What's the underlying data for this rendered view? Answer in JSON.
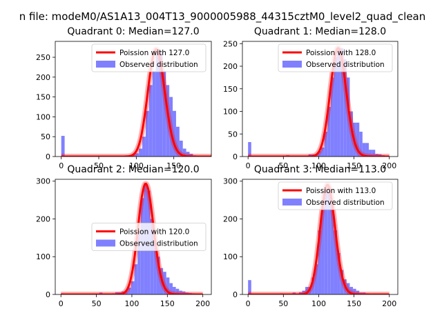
{
  "suptitle": "n file: modeM0/AS1A13_004T13_9000005988_44315cztM0_level2_quad_clean",
  "colors": {
    "bars": "#8080ff",
    "curve": "#ff0000",
    "curve_halo": "#ff0000"
  },
  "chart_data": [
    {
      "type": "bar+line",
      "title": "Quadrant 0: Median=127.0",
      "xlim": [
        -8,
        200
      ],
      "ylim": [
        0,
        290
      ],
      "xticks": [
        0,
        50,
        100,
        150
      ],
      "yticks": [
        0,
        50,
        100,
        150,
        200,
        250
      ],
      "legend": {
        "placement": "top-right",
        "entries": [
          "Poission with 127.0",
          "Observed distribution"
        ]
      },
      "bin_width": 4.5,
      "bars": {
        "x": [
          0,
          90,
          94.5,
          99,
          103.5,
          108,
          112.5,
          117,
          121.5,
          126,
          130.5,
          135,
          139.5,
          144,
          148.5,
          153,
          157.5,
          162,
          166.5,
          171,
          175.5,
          180
        ],
        "values": [
          52,
          2,
          5,
          8,
          20,
          50,
          115,
          180,
          215,
          270,
          265,
          215,
          180,
          150,
          115,
          75,
          40,
          20,
          12,
          7,
          3,
          2
        ]
      },
      "poisson_mean": 127.0,
      "poisson_scale": 270
    },
    {
      "type": "bar+line",
      "title": "Quadrant 1: Median=128.0",
      "xlim": [
        -8,
        212
      ],
      "ylim": [
        0,
        255
      ],
      "xticks": [
        0,
        50,
        100,
        150,
        200
      ],
      "yticks": [
        0,
        50,
        100,
        150,
        200,
        250
      ],
      "legend": {
        "placement": "top-right",
        "entries": [
          "Poission with 128.0",
          "Observed distribution"
        ]
      },
      "bin_width": 4.5,
      "bars": {
        "x": [
          0,
          54,
          81,
          85.5,
          90,
          94.5,
          99,
          103.5,
          108,
          112.5,
          117,
          121.5,
          126,
          130.5,
          135,
          139.5,
          144,
          148.5,
          153,
          157.5,
          162,
          166.5,
          171,
          175.5,
          180,
          184.5,
          189
        ],
        "values": [
          32,
          3,
          2,
          5,
          5,
          5,
          12,
          20,
          55,
          110,
          175,
          220,
          240,
          240,
          215,
          175,
          100,
          75,
          75,
          55,
          30,
          30,
          15,
          15,
          6,
          5,
          3
        ]
      },
      "poisson_mean": 128.0,
      "poisson_scale": 240
    },
    {
      "type": "bar+line",
      "title": "Quadrant 2: Median=120.0",
      "xlim": [
        -8,
        212
      ],
      "ylim": [
        0,
        305
      ],
      "xticks": [
        0,
        50,
        100,
        150,
        200
      ],
      "yticks": [
        0,
        100,
        200,
        300
      ],
      "legend": {
        "placement": "center-right",
        "entries": [
          "Poission with 120.0",
          "Observed distribution"
        ]
      },
      "bin_width": 4.5,
      "bars": {
        "x": [
          0,
          54,
          72,
          76.5,
          81,
          85.5,
          90,
          94.5,
          99,
          103.5,
          108,
          112.5,
          117,
          121.5,
          126,
          130.5,
          135,
          139.5,
          144,
          148.5,
          153,
          157.5,
          162,
          166.5,
          171,
          175.5,
          180,
          184.5
        ],
        "values": [
          3,
          5,
          3,
          6,
          6,
          8,
          10,
          18,
          35,
          80,
          160,
          255,
          295,
          275,
          200,
          140,
          100,
          70,
          60,
          45,
          30,
          20,
          15,
          10,
          8,
          5,
          4,
          3
        ]
      },
      "poisson_mean": 120.0,
      "poisson_scale": 293
    },
    {
      "type": "bar+line",
      "title": "Quadrant 3: Median=113.0",
      "xlim": [
        -8,
        212
      ],
      "ylim": [
        0,
        305
      ],
      "xticks": [
        0,
        50,
        100,
        150,
        200
      ],
      "yticks": [
        0,
        100,
        200,
        300
      ],
      "legend": {
        "placement": "top-right",
        "entries": [
          "Poission with 113.0",
          "Observed distribution"
        ]
      },
      "bin_width": 4.5,
      "bars": {
        "x": [
          0,
          45,
          63,
          72,
          76.5,
          81,
          85.5,
          90,
          94.5,
          99,
          103.5,
          108,
          112.5,
          117,
          121.5,
          126,
          130.5,
          135,
          139.5,
          144,
          148.5,
          153,
          157.5,
          162,
          166.5,
          171,
          180
        ],
        "values": [
          38,
          3,
          5,
          6,
          10,
          20,
          20,
          45,
          80,
          170,
          230,
          270,
          285,
          240,
          170,
          110,
          65,
          40,
          30,
          20,
          15,
          10,
          5,
          5,
          3,
          2,
          2
        ]
      },
      "poisson_mean": 113.0,
      "poisson_scale": 290
    }
  ]
}
